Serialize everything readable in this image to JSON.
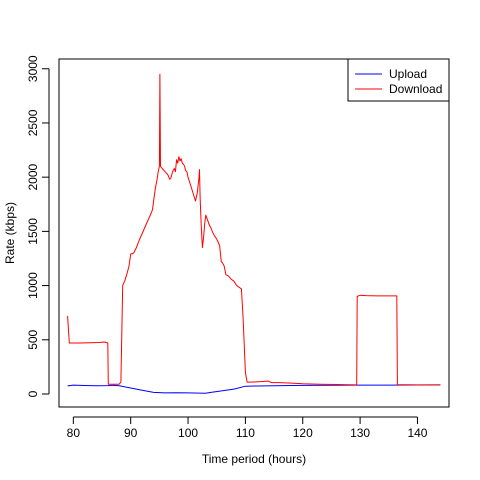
{
  "chart_data": {
    "type": "line",
    "title": "",
    "xlabel": "Time period (hours)",
    "ylabel": "Rate (kbps)",
    "xlim": [
      77.5,
      145.5
    ],
    "ylim": [
      -120,
      3090
    ],
    "xticks": [
      80,
      90,
      100,
      110,
      120,
      130,
      140
    ],
    "yticks": [
      0,
      500,
      1000,
      1500,
      2000,
      2500,
      3000
    ],
    "legend_position": "top-right",
    "grid": false,
    "series": [
      {
        "name": "Upload",
        "color": "#0000ff",
        "x": [
          79,
          80,
          82,
          84,
          86,
          87,
          88,
          90,
          92,
          94,
          96,
          98,
          100,
          102,
          103,
          104,
          106,
          108,
          110,
          112,
          115,
          120,
          125,
          130,
          135,
          140,
          144
        ],
        "y": [
          75,
          82,
          78,
          76,
          77,
          80,
          76,
          55,
          35,
          15,
          10,
          12,
          10,
          8,
          7,
          15,
          30,
          45,
          72,
          74,
          76,
          79,
          80,
          82,
          82,
          83,
          84
        ]
      },
      {
        "name": "Download",
        "color": "#ff0000",
        "x": [
          79,
          79.3,
          81,
          83,
          84.5,
          85.5,
          86,
          86.1,
          87,
          88,
          88.3,
          88.6,
          89,
          89.3,
          89.7,
          90,
          90.5,
          91,
          91.5,
          92,
          92.5,
          93,
          93.5,
          93.8,
          94,
          94.3,
          94.6,
          94.8,
          95,
          95.1,
          95.2,
          95.5,
          96,
          96.5,
          96.8,
          97,
          97.3,
          97.6,
          97.8,
          98,
          98.2,
          98.4,
          98.6,
          98.8,
          99,
          99.2,
          99.4,
          99.6,
          99.8,
          100,
          100.3,
          100.6,
          101,
          101.3,
          101.6,
          101.9,
          102,
          102.1,
          102.3,
          102.5,
          102.7,
          102.9,
          103.1,
          103.3,
          103.5,
          103.7,
          104,
          104.3,
          104.6,
          105,
          105.5,
          105.8,
          106,
          106.3,
          106.6,
          107,
          107.5,
          108,
          108.5,
          109,
          109.3,
          109.6,
          110,
          110.3,
          110.6,
          111,
          113,
          114,
          114.5,
          116,
          118,
          120,
          123,
          126,
          128,
          129.4,
          129.5,
          130,
          131,
          133,
          135,
          136.4,
          136.5,
          138,
          140,
          142,
          144
        ],
        "y": [
          720,
          470,
          470,
          472,
          475,
          480,
          470,
          90,
          90,
          90,
          110,
          1000,
          1050,
          1100,
          1180,
          1290,
          1300,
          1350,
          1420,
          1480,
          1540,
          1600,
          1660,
          1700,
          1780,
          1900,
          1980,
          2050,
          2100,
          2950,
          2100,
          2080,
          2050,
          2020,
          1980,
          1990,
          2050,
          2080,
          2050,
          2160,
          2130,
          2190,
          2150,
          2170,
          2130,
          2120,
          2100,
          2060,
          2050,
          2000,
          1950,
          1900,
          1830,
          1780,
          1850,
          1990,
          2070,
          1820,
          1560,
          1350,
          1440,
          1570,
          1650,
          1620,
          1590,
          1560,
          1530,
          1490,
          1460,
          1430,
          1370,
          1220,
          1210,
          1180,
          1100,
          1090,
          1060,
          1040,
          1000,
          980,
          970,
          700,
          200,
          110,
          110,
          110,
          115,
          120,
          105,
          105,
          100,
          95,
          90,
          88,
          86,
          84,
          900,
          910,
          908,
          905,
          905,
          905,
          85,
          85,
          84,
          84,
          84
        ]
      }
    ]
  }
}
